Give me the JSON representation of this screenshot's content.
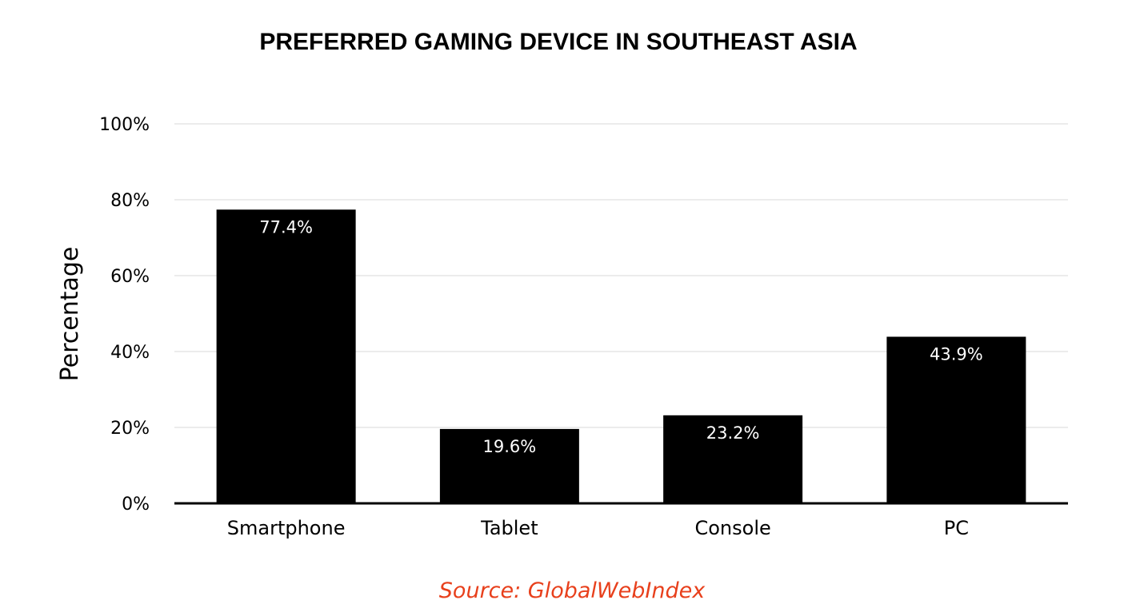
{
  "chart_data": {
    "type": "bar",
    "title": "PREFERRED GAMING DEVICE IN SOUTHEAST ASIA",
    "ylabel": "Percentage",
    "xlabel": "",
    "categories": [
      "Smartphone",
      "Tablet",
      "Console",
      "PC"
    ],
    "values": [
      77.4,
      19.6,
      23.2,
      43.9
    ],
    "data_labels": [
      "77.4%",
      "19.6%",
      "23.2%",
      "43.9%"
    ],
    "ylim": [
      0,
      100
    ],
    "yticks": [
      0,
      20,
      40,
      60,
      80,
      100
    ],
    "ytick_labels": [
      "0%",
      "20%",
      "40%",
      "60%",
      "80%",
      "100%"
    ],
    "grid": true,
    "legend": "none",
    "bar_color": "#000000",
    "data_label_color": "#ffffff",
    "source": "Source: GlobalWebIndex",
    "source_color": "#e8401c"
  }
}
